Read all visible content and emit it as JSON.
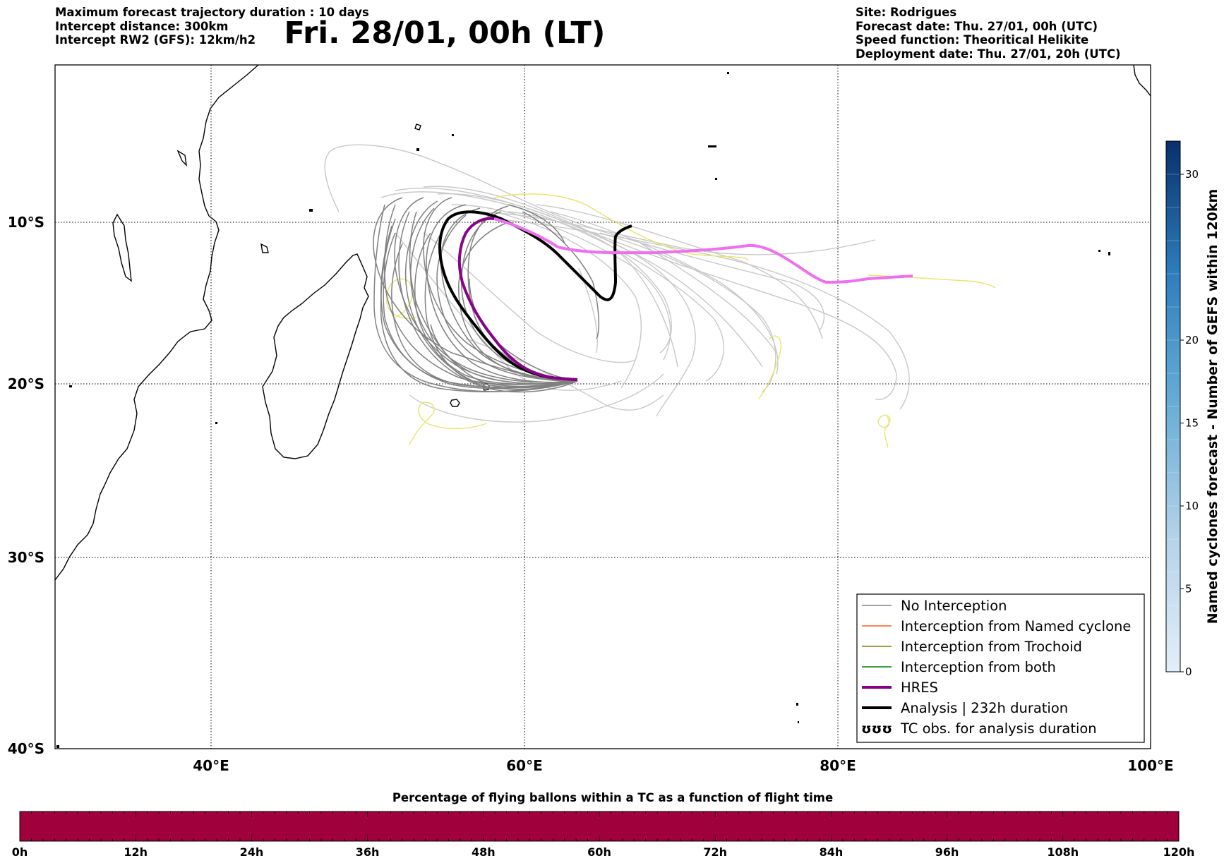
{
  "header": {
    "left_lines": [
      "Maximum forecast trajectory duration : 10 days",
      "Intercept distance: 300km",
      "Intercept RW2 (GFS):  12km/h2"
    ],
    "title": "Fri. 28/01, 00h (LT)",
    "right_lines": [
      "Site: Rodrigues",
      "Forecast date: Thu. 27/01, 00h (UTC)",
      "Speed function: Theoritical Helikite",
      "Deployment date: Thu. 27/01, 20h (UTC)"
    ]
  },
  "map": {
    "lon_range": [
      30,
      100
    ],
    "lat_range": [
      -40,
      0
    ],
    "lat_labels": [
      "10°S",
      "20°S",
      "30°S",
      "40°S"
    ],
    "lon_labels": [
      "40°E",
      "60°E",
      "80°E",
      "100°E"
    ],
    "colors": {
      "no_interception": "#808080",
      "named_cyclone": "#ff5a1f",
      "trochoid": "#808000",
      "both": "#008000",
      "hres": "#8b008b",
      "hres_pink": "#ee6ff0",
      "analysis": "#000000",
      "light_tracks": "#c8c8c8",
      "yellow_tracks": "#e6e66b"
    }
  },
  "legend": {
    "items": [
      {
        "label": "No Interception",
        "kind": "thin",
        "color": "#808080"
      },
      {
        "label": "Interception from Named cyclone",
        "kind": "thin",
        "color": "#ff5a1f"
      },
      {
        "label": "Interception from Trochoid",
        "kind": "thin",
        "color": "#808000"
      },
      {
        "label": "Interception from both",
        "kind": "thin",
        "color": "#008000"
      },
      {
        "label": "HRES",
        "kind": "thick",
        "color": "#8b008b"
      },
      {
        "label": "Analysis | 232h duration",
        "kind": "thick",
        "color": "#000000"
      },
      {
        "label": "TC obs. for analysis duration",
        "kind": "symbol",
        "symbol": "ʊʊʊ"
      }
    ]
  },
  "colorbar": {
    "title": "Named cyclones forecast - Number of GEFS within 120km",
    "ticks": [
      "0",
      "5",
      "10",
      "15",
      "20",
      "30"
    ],
    "tick_values": [
      0,
      5,
      10,
      15,
      20,
      30
    ],
    "range": [
      0,
      32
    ]
  },
  "timeline": {
    "title": "Percentage of flying ballons within a TC as a function of flight time",
    "ticks": [
      "0h",
      "12h",
      "24h",
      "36h",
      "48h",
      "60h",
      "72h",
      "84h",
      "96h",
      "108h",
      "120h"
    ],
    "fill_color": "#a0003c"
  }
}
